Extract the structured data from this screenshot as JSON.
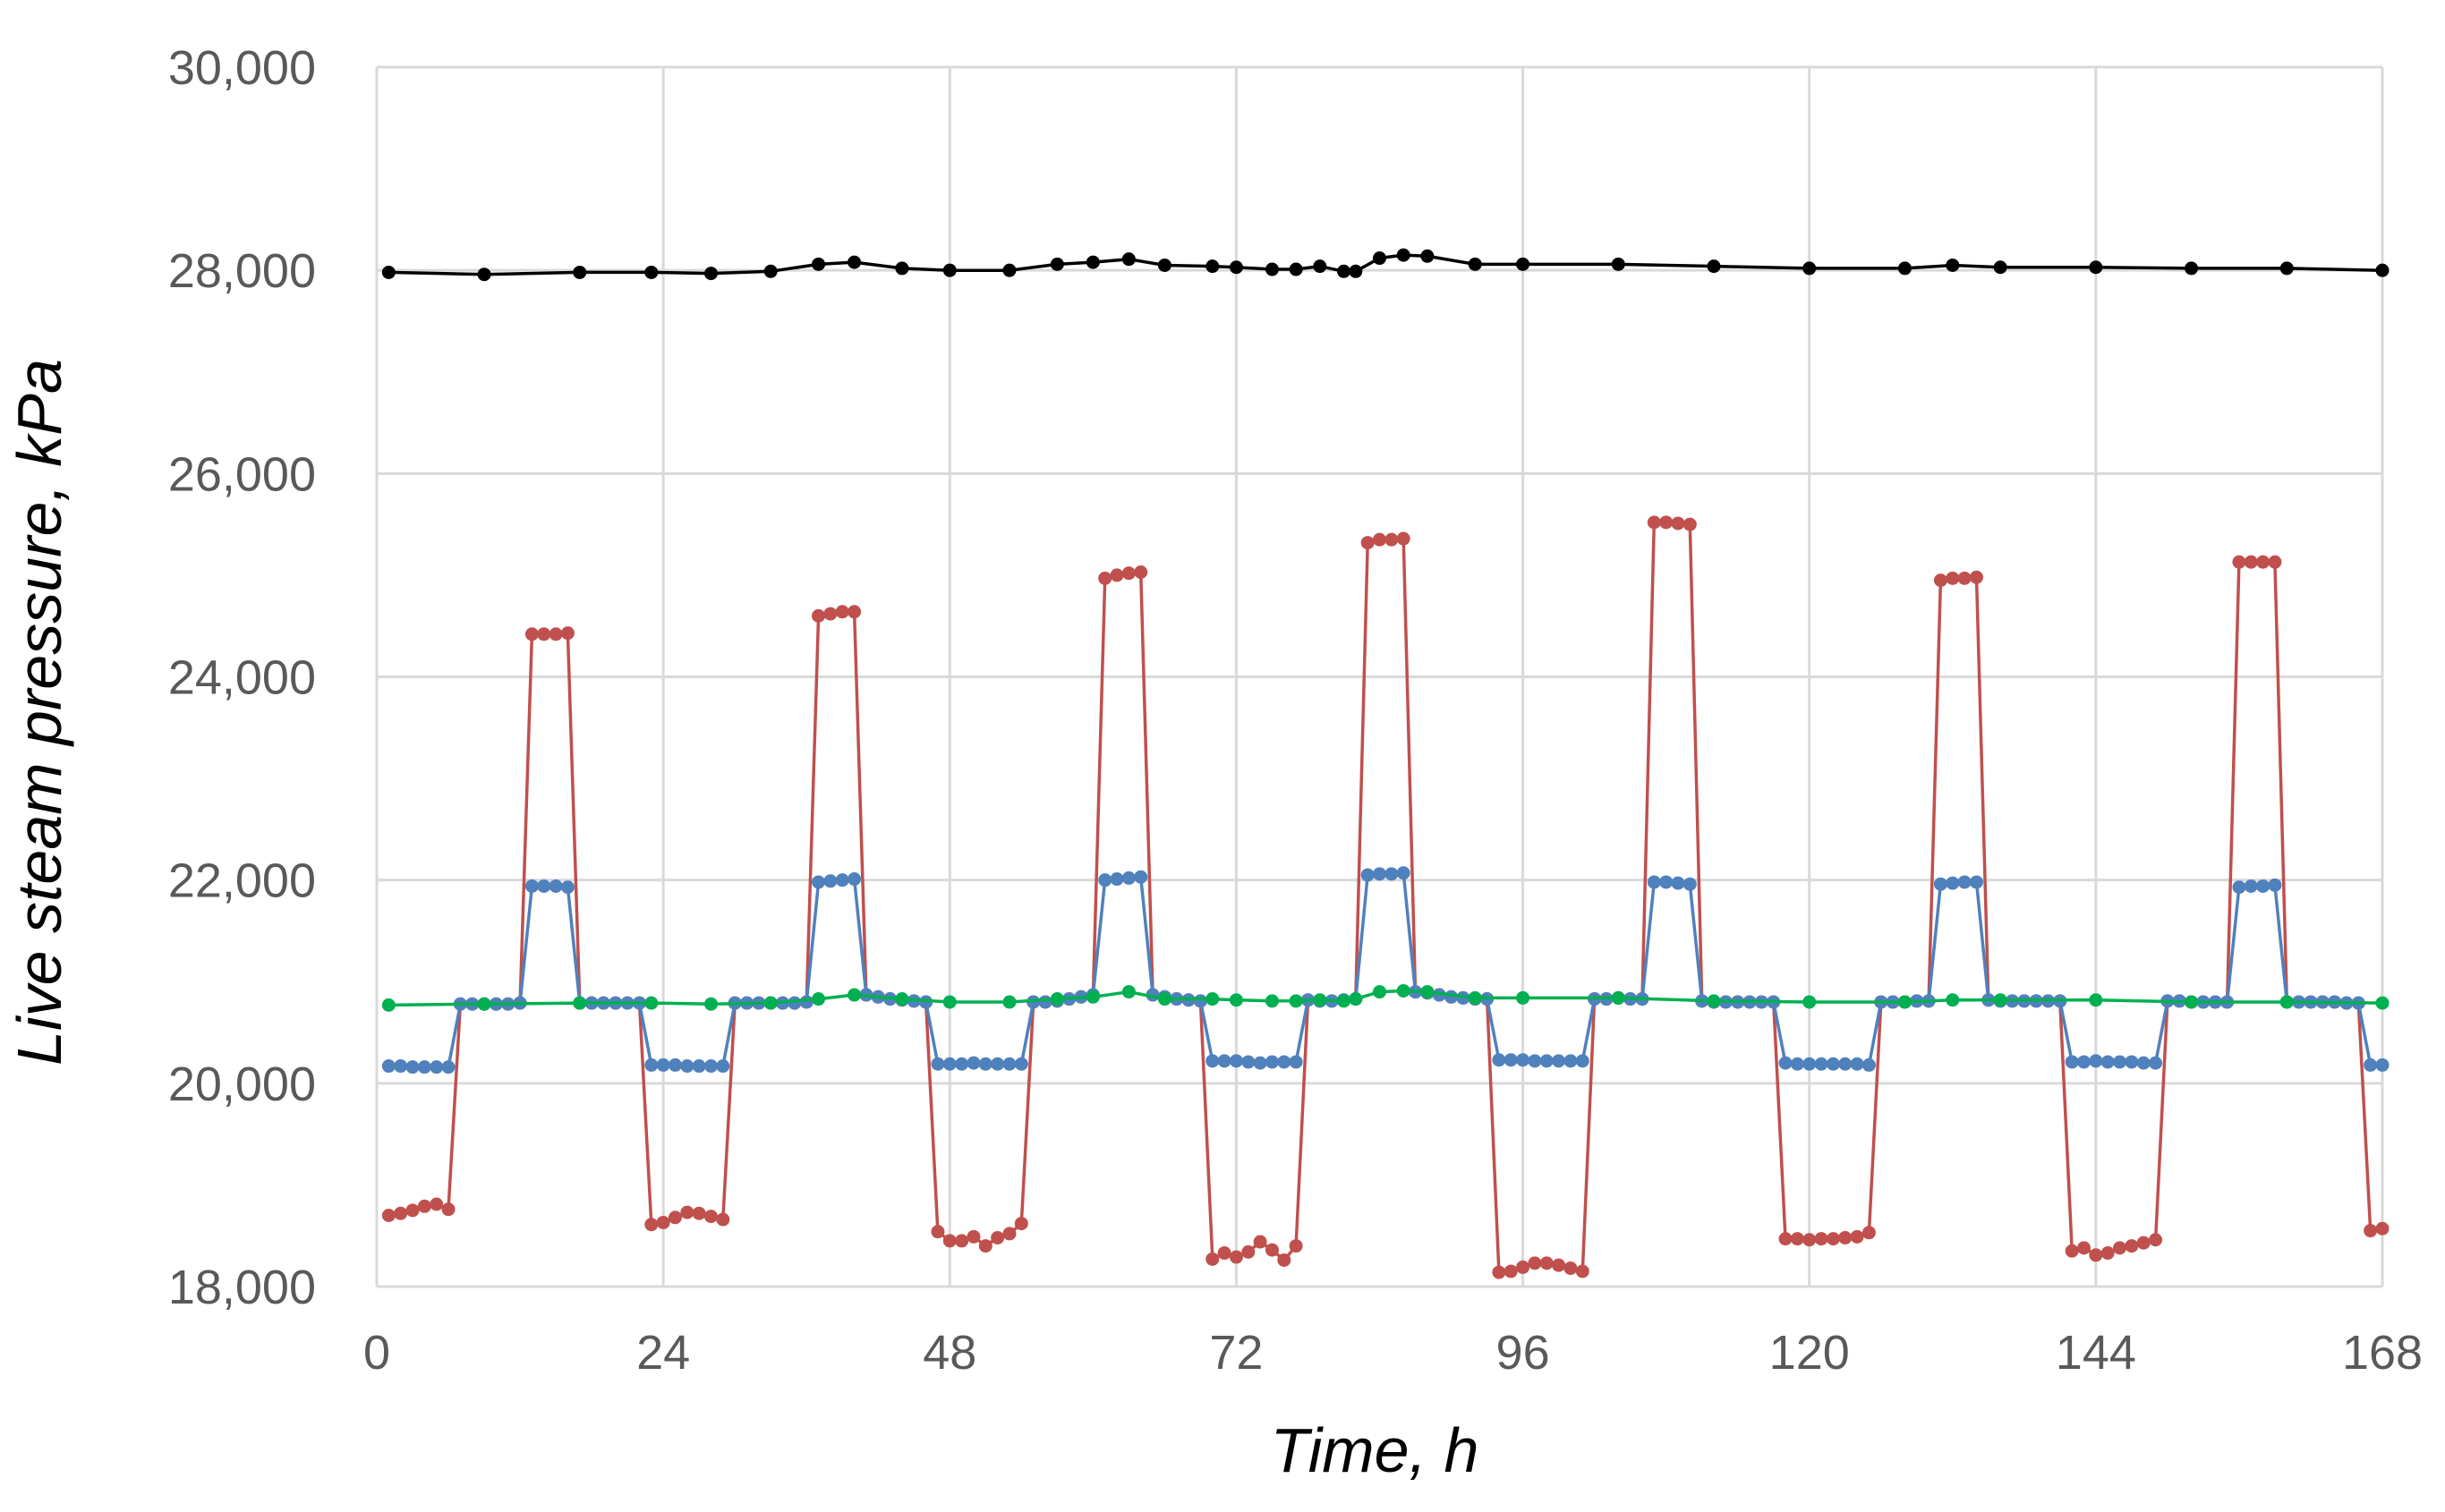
{
  "chart_data": {
    "type": "line",
    "title": "",
    "xlabel": "Time, h",
    "ylabel": "Live steam pressure, kPa",
    "xlim": [
      0,
      168
    ],
    "ylim": [
      18000,
      30000
    ],
    "x_ticks": [
      0,
      24,
      48,
      72,
      96,
      120,
      144,
      168
    ],
    "x_tick_labels": [
      "0",
      "24",
      "48",
      "72",
      "96",
      "120",
      "144",
      "168"
    ],
    "y_ticks": [
      18000,
      20000,
      22000,
      24000,
      26000,
      28000,
      30000
    ],
    "y_tick_labels": [
      "18,000",
      "20,000",
      "22,000",
      "24,000",
      "26,000",
      "28,000",
      "30,000"
    ],
    "grid": true,
    "legend": "none",
    "series": [
      {
        "color": "#000000",
        "marker": "circle",
        "x": [
          1,
          9,
          17,
          23,
          28,
          33,
          37,
          40,
          44,
          48,
          53,
          57,
          60,
          63,
          66,
          70,
          72,
          75,
          77,
          79,
          81,
          82,
          84,
          86,
          88,
          92,
          96,
          104,
          112,
          120,
          128,
          132,
          136,
          144,
          152,
          160,
          168
        ],
        "values": [
          27980,
          27960,
          27980,
          27980,
          27970,
          27990,
          28060,
          28080,
          28020,
          28000,
          28000,
          28060,
          28080,
          28110,
          28050,
          28040,
          28030,
          28010,
          28010,
          28040,
          27990,
          27990,
          28120,
          28150,
          28140,
          28060,
          28060,
          28060,
          28040,
          28020,
          28020,
          28050,
          28030,
          28030,
          28020,
          28020,
          28000
        ]
      },
      {
        "color": "#c0504d",
        "marker": "circle",
        "x": [
          1,
          2,
          3,
          4,
          5,
          6,
          7,
          8,
          9,
          10,
          11,
          12,
          13,
          14,
          15,
          16,
          17,
          18,
          19,
          20,
          21,
          22,
          23,
          24,
          25,
          26,
          27,
          28,
          29,
          30,
          31,
          32,
          33,
          34,
          35,
          36,
          37,
          38,
          39,
          40,
          41,
          42,
          43,
          44,
          45,
          46,
          47,
          48,
          49,
          50,
          51,
          52,
          53,
          54,
          55,
          56,
          57,
          58,
          59,
          60,
          61,
          62,
          63,
          64,
          65,
          66,
          67,
          68,
          69,
          70,
          71,
          72,
          73,
          74,
          75,
          76,
          77,
          78,
          79,
          80,
          81,
          82,
          83,
          84,
          85,
          86,
          87,
          88,
          89,
          90,
          91,
          92,
          93,
          94,
          95,
          96,
          97,
          98,
          99,
          100,
          101,
          102,
          103,
          104,
          105,
          106,
          107,
          108,
          109,
          110,
          111,
          112,
          113,
          114,
          115,
          116,
          117,
          118,
          119,
          120,
          121,
          122,
          123,
          124,
          125,
          126,
          127,
          128,
          129,
          130,
          131,
          132,
          133,
          134,
          135,
          136,
          137,
          138,
          139,
          140,
          141,
          142,
          143,
          144,
          145,
          146,
          147,
          148,
          149,
          150,
          151,
          152,
          153,
          154,
          155,
          156,
          157,
          158,
          159,
          160,
          161,
          162,
          163,
          164,
          165,
          166,
          167,
          168
        ],
        "values": [
          18700,
          18720,
          18750,
          18790,
          18810,
          18760,
          20780,
          20780,
          20780,
          20780,
          20780,
          20790,
          24420,
          24420,
          24420,
          24430,
          20790,
          20790,
          20790,
          20790,
          20790,
          20790,
          18610,
          18630,
          18680,
          18730,
          18720,
          18690,
          18660,
          20790,
          20790,
          20790,
          20790,
          20790,
          20790,
          20800,
          24600,
          24620,
          24640,
          24640,
          20870,
          20850,
          20830,
          20820,
          20810,
          20800,
          18540,
          18450,
          18450,
          18490,
          18400,
          18480,
          18520,
          18620,
          20800,
          20800,
          20810,
          20830,
          20850,
          20870,
          24970,
          25000,
          25020,
          25030,
          20870,
          20850,
          20830,
          20820,
          20810,
          18270,
          18330,
          18290,
          18340,
          18440,
          18360,
          18260,
          18400,
          20820,
          20810,
          20810,
          20820,
          20830,
          25320,
          25350,
          25350,
          25360,
          20900,
          20890,
          20870,
          20850,
          20840,
          20830,
          20830,
          18140,
          18150,
          18190,
          18230,
          18230,
          18210,
          18180,
          18150,
          20830,
          20830,
          20840,
          20830,
          20830,
          25520,
          25520,
          25510,
          25500,
          20810,
          20800,
          20800,
          20800,
          20800,
          20800,
          20800,
          18470,
          18470,
          18460,
          18470,
          18470,
          18480,
          18490,
          18530,
          20800,
          20800,
          20800,
          20810,
          20810,
          24950,
          24970,
          24970,
          24980,
          20820,
          20810,
          20810,
          20810,
          20810,
          20810,
          20810,
          18350,
          18380,
          18310,
          18330,
          18380,
          18400,
          18430,
          18460,
          20810,
          20810,
          20800,
          20800,
          20800,
          20800,
          25130,
          25130,
          25130,
          25130,
          20800,
          20800,
          20800,
          20800,
          20800,
          20790,
          20790,
          18550,
          18570
        ]
      },
      {
        "color": "#4f81bd",
        "marker": "circle",
        "x": [
          1,
          2,
          3,
          4,
          5,
          6,
          7,
          8,
          9,
          10,
          11,
          12,
          13,
          14,
          15,
          16,
          17,
          18,
          19,
          20,
          21,
          22,
          23,
          24,
          25,
          26,
          27,
          28,
          29,
          30,
          31,
          32,
          33,
          34,
          35,
          36,
          37,
          38,
          39,
          40,
          41,
          42,
          43,
          44,
          45,
          46,
          47,
          48,
          49,
          50,
          51,
          52,
          53,
          54,
          55,
          56,
          57,
          58,
          59,
          60,
          61,
          62,
          63,
          64,
          65,
          66,
          67,
          68,
          69,
          70,
          71,
          72,
          73,
          74,
          75,
          76,
          77,
          78,
          79,
          80,
          81,
          82,
          83,
          84,
          85,
          86,
          87,
          88,
          89,
          90,
          91,
          92,
          93,
          94,
          95,
          96,
          97,
          98,
          99,
          100,
          101,
          102,
          103,
          104,
          105,
          106,
          107,
          108,
          109,
          110,
          111,
          112,
          113,
          114,
          115,
          116,
          117,
          118,
          119,
          120,
          121,
          122,
          123,
          124,
          125,
          126,
          127,
          128,
          129,
          130,
          131,
          132,
          133,
          134,
          135,
          136,
          137,
          138,
          139,
          140,
          141,
          142,
          143,
          144,
          145,
          146,
          147,
          148,
          149,
          150,
          151,
          152,
          153,
          154,
          155,
          156,
          157,
          158,
          159,
          160,
          161,
          162,
          163,
          164,
          165,
          166,
          167,
          168
        ],
        "values": [
          20170,
          20170,
          20160,
          20160,
          20160,
          20160,
          20780,
          20780,
          20780,
          20780,
          20780,
          20790,
          21940,
          21940,
          21940,
          21930,
          20790,
          20790,
          20790,
          20790,
          20790,
          20790,
          20180,
          20180,
          20180,
          20170,
          20170,
          20170,
          20170,
          20790,
          20790,
          20790,
          20790,
          20790,
          20790,
          20800,
          21980,
          21990,
          22000,
          22010,
          20870,
          20850,
          20830,
          20820,
          20810,
          20800,
          20190,
          20190,
          20190,
          20200,
          20190,
          20190,
          20190,
          20190,
          20800,
          20800,
          20810,
          20830,
          20850,
          20870,
          22000,
          22010,
          22020,
          22030,
          20870,
          20850,
          20830,
          20820,
          20810,
          20220,
          20220,
          20220,
          20210,
          20200,
          20210,
          20210,
          20210,
          20820,
          20810,
          20810,
          20820,
          20830,
          22050,
          22060,
          22060,
          22070,
          20900,
          20890,
          20870,
          20850,
          20840,
          20830,
          20830,
          20230,
          20230,
          20230,
          20220,
          20220,
          20220,
          20220,
          20220,
          20830,
          20830,
          20840,
          20830,
          20830,
          21980,
          21980,
          21970,
          21960,
          20810,
          20800,
          20800,
          20800,
          20800,
          20800,
          20800,
          20200,
          20190,
          20190,
          20190,
          20190,
          20190,
          20190,
          20180,
          20800,
          20800,
          20800,
          20810,
          20810,
          21960,
          21970,
          21980,
          21980,
          20820,
          20810,
          20810,
          20810,
          20810,
          20810,
          20810,
          20210,
          20210,
          20220,
          20210,
          20210,
          20210,
          20200,
          20200,
          20810,
          20810,
          20800,
          20800,
          20800,
          20800,
          21930,
          21940,
          21940,
          21950,
          20800,
          20800,
          20800,
          20800,
          20800,
          20790,
          20790,
          20180,
          20180
        ]
      },
      {
        "color": "#00b050",
        "marker": "circle",
        "x": [
          1,
          9,
          17,
          23,
          28,
          33,
          37,
          40,
          44,
          48,
          53,
          57,
          60,
          63,
          66,
          70,
          72,
          75,
          77,
          79,
          81,
          82,
          84,
          86,
          88,
          92,
          96,
          104,
          112,
          120,
          128,
          132,
          136,
          144,
          152,
          160,
          168
        ],
        "values": [
          20770,
          20780,
          20790,
          20790,
          20780,
          20790,
          20830,
          20870,
          20830,
          20800,
          20800,
          20830,
          20850,
          20900,
          20830,
          20830,
          20820,
          20810,
          20810,
          20820,
          20810,
          20830,
          20900,
          20910,
          20900,
          20840,
          20840,
          20840,
          20810,
          20800,
          20800,
          20820,
          20820,
          20820,
          20800,
          20800,
          20790
        ]
      }
    ]
  }
}
